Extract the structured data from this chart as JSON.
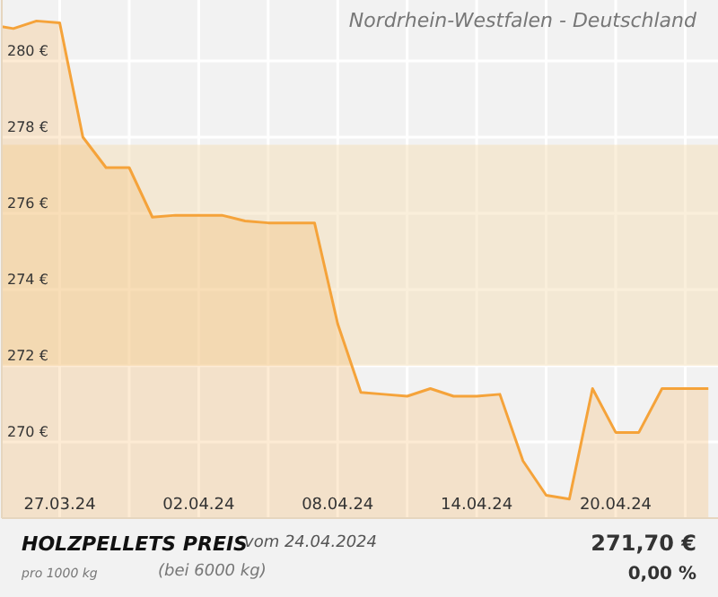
{
  "chart_data": {
    "type": "area",
    "title": "Nordrhein-Westfalen - Deutschland",
    "x": [
      "2024-03-24T12:00",
      "2024-03-25",
      "2024-03-26",
      "2024-03-27",
      "2024-03-28",
      "2024-03-29",
      "2024-03-30",
      "2024-03-31",
      "2024-04-01",
      "2024-04-02",
      "2024-04-03",
      "2024-04-04",
      "2024-04-05",
      "2024-04-06",
      "2024-04-07",
      "2024-04-08",
      "2024-04-09",
      "2024-04-10",
      "2024-04-11",
      "2024-04-12",
      "2024-04-13",
      "2024-04-14",
      "2024-04-15",
      "2024-04-16",
      "2024-04-17",
      "2024-04-18",
      "2024-04-19",
      "2024-04-20",
      "2024-04-21",
      "2024-04-22",
      "2024-04-23",
      "2024-04-24"
    ],
    "series": [
      {
        "color": "#f5a33a",
        "values": [
          280.9,
          280.85,
          281.05,
          281.0,
          278.0,
          277.2,
          277.2,
          275.9,
          275.95,
          275.95,
          275.95,
          275.8,
          275.75,
          275.75,
          275.75,
          273.1,
          271.3,
          271.25,
          271.2,
          271.4,
          271.2,
          271.2,
          271.25,
          269.5,
          268.6,
          268.5,
          271.4,
          270.25,
          270.25,
          271.4,
          271.4,
          271.4
        ]
      }
    ],
    "xlim": [
      "2024-03-24T12:00",
      "2024-04-24T10:00"
    ],
    "xticks": [
      {
        "value": "2024-03-27",
        "label": "27.03.24"
      },
      {
        "value": "2024-03-30",
        "label": null
      },
      {
        "value": "2024-04-02",
        "label": "02.04.24"
      },
      {
        "value": "2024-04-05",
        "label": null
      },
      {
        "value": "2024-04-08",
        "label": "08.04.24"
      },
      {
        "value": "2024-04-11",
        "label": null
      },
      {
        "value": "2024-04-14",
        "label": "14.04.24"
      },
      {
        "value": "2024-04-17",
        "label": null
      },
      {
        "value": "2024-04-20",
        "label": "20.04.24"
      },
      {
        "value": "2024-04-23",
        "label": null
      }
    ],
    "ylim": [
      268,
      281.6
    ],
    "yticks": [
      {
        "value": 270,
        "label": "270 €"
      },
      {
        "value": 272,
        "label": "272 €"
      },
      {
        "value": 274,
        "label": "274 €"
      },
      {
        "value": 276,
        "label": "276 €"
      },
      {
        "value": 278,
        "label": "278 €"
      },
      {
        "value": 280,
        "label": "280 €"
      }
    ],
    "bands": [
      {
        "axis": "y",
        "from": 272,
        "to": 277.8,
        "color": "#f5dcb0"
      }
    ],
    "grid": true,
    "marker": "none",
    "line_style": "solid",
    "annotations": [
      "HOLZPELLETS PREIS",
      "vom 24.04.2024",
      "pro 1000 kg",
      "(bei 6000 kg)",
      "271,70 €",
      "0,00 %"
    ]
  }
}
